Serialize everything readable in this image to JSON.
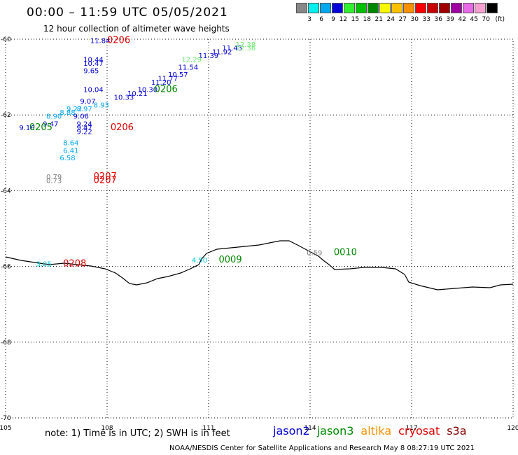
{
  "header": {
    "title": "00:00 – 11:59 UTC 05/05/2021",
    "subtitle": "12 hour collection of altimeter wave heights"
  },
  "legend_scale": {
    "unit": "(ft)",
    "colors": [
      "#888888",
      "#00f0f0",
      "#00a8f0",
      "#0000d8",
      "#30f030",
      "#00c000",
      "#008800",
      "#f8f800",
      "#f8c000",
      "#f89000",
      "#f80000",
      "#c80000",
      "#a00000",
      "#a000a0",
      "#e868e8",
      "#f8a0d0",
      "#000000"
    ],
    "labels": [
      "3",
      "6",
      "9",
      "12",
      "15",
      "18",
      "21",
      "24",
      "27",
      "30",
      "33",
      "36",
      "39",
      "42",
      "45",
      "70"
    ]
  },
  "axes": {
    "lon_ticks": [
      "105",
      "108",
      "111",
      "114",
      "117",
      "120"
    ],
    "lat_ticks": [
      "-60",
      "-62",
      "-64",
      "-66",
      "-68",
      "-70"
    ]
  },
  "chart_data": {
    "type": "scatter",
    "xlabel": "",
    "ylabel": "",
    "xlim": [
      105,
      120
    ],
    "ylim": [
      -70,
      -60
    ],
    "grid": true,
    "series": [
      {
        "name": "jason2",
        "color": "#0000d8",
        "points": [
          {
            "lon": 107.5,
            "lat": -60.1,
            "v": "11.84"
          },
          {
            "lon": 107.3,
            "lat": -60.6,
            "v": "10.44"
          },
          {
            "lon": 107.3,
            "lat": -60.7,
            "v": "10.47"
          },
          {
            "lon": 107.3,
            "lat": -60.9,
            "v": "9.65"
          },
          {
            "lon": 107.3,
            "lat": -61.4,
            "v": "10.04"
          },
          {
            "lon": 107.2,
            "lat": -61.7,
            "v": "9.07"
          },
          {
            "lon": 107.0,
            "lat": -62.1,
            "v": "9.06"
          },
          {
            "lon": 107.1,
            "lat": -62.3,
            "v": "9.24"
          },
          {
            "lon": 107.1,
            "lat": -62.4,
            "v": "9.47"
          },
          {
            "lon": 107.1,
            "lat": -62.5,
            "v": "9.22"
          },
          {
            "lon": 105.4,
            "lat": -62.4,
            "v": "9.16"
          },
          {
            "lon": 106.1,
            "lat": -62.3,
            "v": "9.47"
          },
          {
            "lon": 108.2,
            "lat": -61.6,
            "v": "10.33"
          },
          {
            "lon": 108.6,
            "lat": -61.5,
            "v": "10.21"
          },
          {
            "lon": 108.9,
            "lat": -61.4,
            "v": "10.30"
          },
          {
            "lon": 109.3,
            "lat": -61.2,
            "v": "11.20"
          },
          {
            "lon": 109.5,
            "lat": -61.1,
            "v": "11.77"
          },
          {
            "lon": 109.8,
            "lat": -61.0,
            "v": "10.57"
          },
          {
            "lon": 110.1,
            "lat": -60.8,
            "v": "11.54"
          },
          {
            "lon": 110.7,
            "lat": -60.5,
            "v": "11.39"
          },
          {
            "lon": 111.1,
            "lat": -60.4,
            "v": "11.92"
          },
          {
            "lon": 111.4,
            "lat": -60.3,
            "v": "11.43"
          }
        ]
      },
      {
        "name": "light",
        "color": "#00a8f0",
        "points": [
          {
            "lon": 106.6,
            "lat": -62.0,
            "v": "8.88"
          },
          {
            "lon": 106.8,
            "lat": -61.9,
            "v": "9.22"
          },
          {
            "lon": 107.1,
            "lat": -61.9,
            "v": "8.97"
          },
          {
            "lon": 107.6,
            "lat": -61.8,
            "v": "8.93"
          },
          {
            "lon": 106.2,
            "lat": -62.1,
            "v": "8.90"
          },
          {
            "lon": 106.7,
            "lat": -62.8,
            "v": "8.64"
          },
          {
            "lon": 106.7,
            "lat": -63.0,
            "v": "6.41"
          },
          {
            "lon": 106.6,
            "lat": -63.2,
            "v": "6.58"
          }
        ]
      },
      {
        "name": "cyan",
        "color": "#00c8d8",
        "points": [
          {
            "lon": 105.9,
            "lat": -66.0,
            "v": "3.05"
          },
          {
            "lon": 110.5,
            "lat": -65.9,
            "v": "4.50"
          }
        ]
      },
      {
        "name": "lightgreen",
        "color": "#70e870",
        "points": [
          {
            "lon": 110.2,
            "lat": -60.6,
            "v": "12.29"
          },
          {
            "lon": 111.8,
            "lat": -60.2,
            "v": "12.38"
          },
          {
            "lon": 111.8,
            "lat": -60.3,
            "v": "12.36"
          }
        ]
      },
      {
        "name": "gray",
        "color": "#808080",
        "points": [
          {
            "lon": 106.2,
            "lat": -63.7,
            "v": "0.79"
          },
          {
            "lon": 106.2,
            "lat": -63.8,
            "v": "0.73"
          },
          {
            "lon": 113.9,
            "lat": -65.7,
            "v": "0.59"
          }
        ]
      }
    ],
    "time_labels": [
      {
        "lon": 108.0,
        "lat": -60.1,
        "t": "0206",
        "color": "#e00000"
      },
      {
        "lon": 109.4,
        "lat": -61.4,
        "t": "0206",
        "color": "#008800"
      },
      {
        "lon": 108.1,
        "lat": -62.4,
        "t": "0206",
        "color": "#e00000"
      },
      {
        "lon": 105.7,
        "lat": -62.4,
        "t": "0205",
        "color": "#008800"
      },
      {
        "lon": 107.6,
        "lat": -63.7,
        "t": "0207",
        "color": "#e00000"
      },
      {
        "lon": 107.6,
        "lat": -63.8,
        "t": "0207",
        "color": "#e00000"
      },
      {
        "lon": 106.7,
        "lat": -66.0,
        "t": "0208",
        "color": "#e00000"
      },
      {
        "lon": 111.3,
        "lat": -65.9,
        "t": "0009",
        "color": "#008800"
      },
      {
        "lon": 114.7,
        "lat": -65.7,
        "t": "0010",
        "color": "#008800"
      }
    ]
  },
  "footer": {
    "note": "note: 1) Time is in UTC; 2) SWH is in feet",
    "satellites": [
      {
        "name": "jason2",
        "color": "#0000d8"
      },
      {
        "name": "jason3",
        "color": "#008800"
      },
      {
        "name": "altika",
        "color": "#f89000"
      },
      {
        "name": "cryosat",
        "color": "#e00000"
      },
      {
        "name": "s3a",
        "color": "#800000"
      }
    ],
    "credit": "NOAA/NESDIS Center for Satellite Applications and Research     May  8 08:27:19 UTC 2021"
  }
}
